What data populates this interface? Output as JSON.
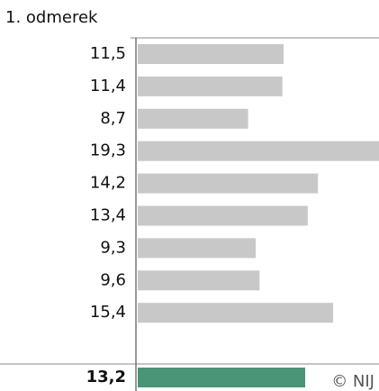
{
  "chart_data": {
    "type": "bar",
    "orientation": "horizontal",
    "title": "1. odmerek",
    "values": [
      11.5,
      11.4,
      8.7,
      19.3,
      14.2,
      13.4,
      9.3,
      9.6,
      15.4
    ],
    "value_labels": [
      "11,5",
      "11,4",
      "8,7",
      "19,3",
      "14,2",
      "13,4",
      "9,3",
      "9,6",
      "15,4"
    ],
    "color": "#c8c8c8",
    "highlight": {
      "value": 13.2,
      "value_label": "13,2",
      "color": "#4a9478"
    },
    "xlim": [
      0,
      19.3
    ],
    "footer": "© NIJ"
  }
}
